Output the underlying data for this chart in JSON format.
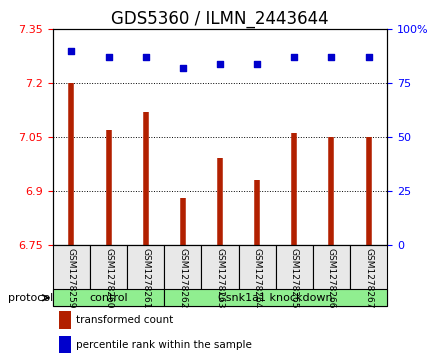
{
  "title": "GDS5360 / ILMN_2443644",
  "samples": [
    "GSM1278259",
    "GSM1278260",
    "GSM1278261",
    "GSM1278262",
    "GSM1278263",
    "GSM1278264",
    "GSM1278265",
    "GSM1278266",
    "GSM1278267"
  ],
  "bar_values": [
    7.2,
    7.07,
    7.12,
    6.88,
    6.99,
    6.93,
    7.06,
    7.05,
    7.05
  ],
  "dot_values": [
    90,
    87,
    87,
    82,
    84,
    84,
    87,
    87,
    87
  ],
  "ylim_left": [
    6.75,
    7.35
  ],
  "ylim_right": [
    0,
    100
  ],
  "yticks_left": [
    6.75,
    6.9,
    7.05,
    7.2,
    7.35
  ],
  "yticks_right": [
    0,
    25,
    50,
    75,
    100
  ],
  "bar_color": "#B22000",
  "dot_color": "#0000CC",
  "groups": [
    {
      "label": "control",
      "indices": [
        0,
        1,
        2
      ],
      "color": "#90EE90"
    },
    {
      "label": "Csnk1a1 knockdown",
      "indices": [
        3,
        4,
        5,
        6,
        7,
        8
      ],
      "color": "#90EE90"
    }
  ],
  "protocol_label": "protocol",
  "legend_bar_label": "transformed count",
  "legend_dot_label": "percentile rank within the sample",
  "grid_color": "#000000",
  "bg_color": "#E8E8E8",
  "plot_bg": "#FFFFFF",
  "title_fontsize": 12,
  "tick_fontsize": 8,
  "label_fontsize": 8
}
